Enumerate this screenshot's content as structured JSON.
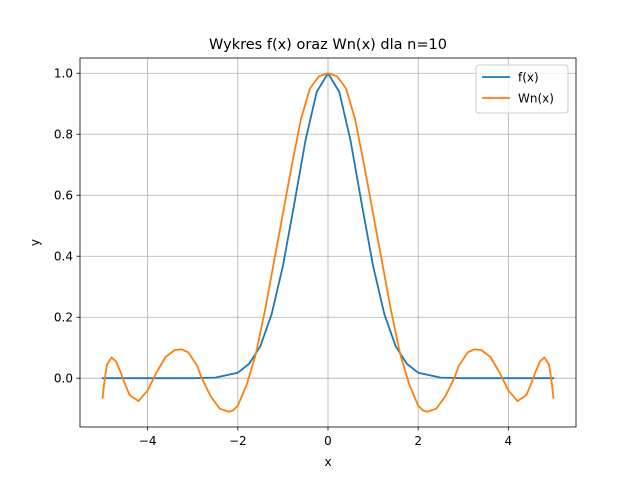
{
  "chart_data": {
    "type": "line",
    "title": "Wykres f(x) oraz Wn(x) dla n=10",
    "xlabel": "x",
    "ylabel": "y",
    "xlim": [
      -5.5,
      5.5
    ],
    "ylim": [
      -0.16,
      1.05
    ],
    "xticks": [
      -4,
      -2,
      0,
      2,
      4
    ],
    "xtick_labels": [
      "−4",
      "−2",
      "0",
      "2",
      "4"
    ],
    "yticks": [
      0.0,
      0.2,
      0.4,
      0.6,
      0.8,
      1.0
    ],
    "ytick_labels": [
      "0.0",
      "0.2",
      "0.4",
      "0.6",
      "0.8",
      "1.0"
    ],
    "grid": true,
    "legend_position": "top-right",
    "series": [
      {
        "name": "f(x)",
        "color": "#1f77b4",
        "x": [
          -5.0,
          -4.0,
          -3.0,
          -2.5,
          -2.0,
          -1.75,
          -1.5,
          -1.25,
          -1.0,
          -0.75,
          -0.5,
          -0.25,
          0.0,
          0.25,
          0.5,
          0.75,
          1.0,
          1.25,
          1.5,
          1.75,
          2.0,
          2.5,
          3.0,
          4.0,
          5.0
        ],
        "y": [
          0.0,
          0.0,
          0.0,
          0.002,
          0.018,
          0.047,
          0.105,
          0.21,
          0.368,
          0.57,
          0.779,
          0.939,
          1.0,
          0.939,
          0.779,
          0.57,
          0.368,
          0.21,
          0.105,
          0.047,
          0.018,
          0.002,
          0.0,
          0.0,
          0.0
        ]
      },
      {
        "name": "Wn(x)",
        "color": "#ff7f0e",
        "x": [
          -5.0,
          -4.95,
          -4.9,
          -4.8,
          -4.7,
          -4.6,
          -4.5,
          -4.4,
          -4.2,
          -4.0,
          -3.8,
          -3.6,
          -3.4,
          -3.25,
          -3.1,
          -2.9,
          -2.8,
          -2.6,
          -2.4,
          -2.2,
          -2.1,
          -2.0,
          -1.8,
          -1.6,
          -1.4,
          -1.2,
          -1.0,
          -0.8,
          -0.6,
          -0.4,
          -0.2,
          0.0,
          0.2,
          0.4,
          0.6,
          0.8,
          1.0,
          1.2,
          1.4,
          1.6,
          1.8,
          2.0,
          2.1,
          2.2,
          2.4,
          2.6,
          2.8,
          2.9,
          3.1,
          3.25,
          3.4,
          3.6,
          3.8,
          4.0,
          4.2,
          4.4,
          4.5,
          4.6,
          4.7,
          4.8,
          4.9,
          4.95,
          5.0
        ],
        "y": [
          -0.065,
          0.0,
          0.045,
          0.068,
          0.055,
          0.02,
          -0.02,
          -0.055,
          -0.075,
          -0.04,
          0.02,
          0.07,
          0.092,
          0.095,
          0.085,
          0.04,
          0.0,
          -0.06,
          -0.1,
          -0.11,
          -0.105,
          -0.09,
          -0.02,
          0.08,
          0.22,
          0.38,
          0.54,
          0.7,
          0.85,
          0.95,
          0.99,
          1.0,
          0.99,
          0.95,
          0.85,
          0.7,
          0.54,
          0.38,
          0.22,
          0.08,
          -0.02,
          -0.09,
          -0.105,
          -0.11,
          -0.1,
          -0.06,
          0.0,
          0.04,
          0.085,
          0.095,
          0.092,
          0.07,
          0.02,
          -0.04,
          -0.075,
          -0.055,
          -0.02,
          0.02,
          0.055,
          0.068,
          0.045,
          0.0,
          -0.065
        ]
      }
    ]
  }
}
